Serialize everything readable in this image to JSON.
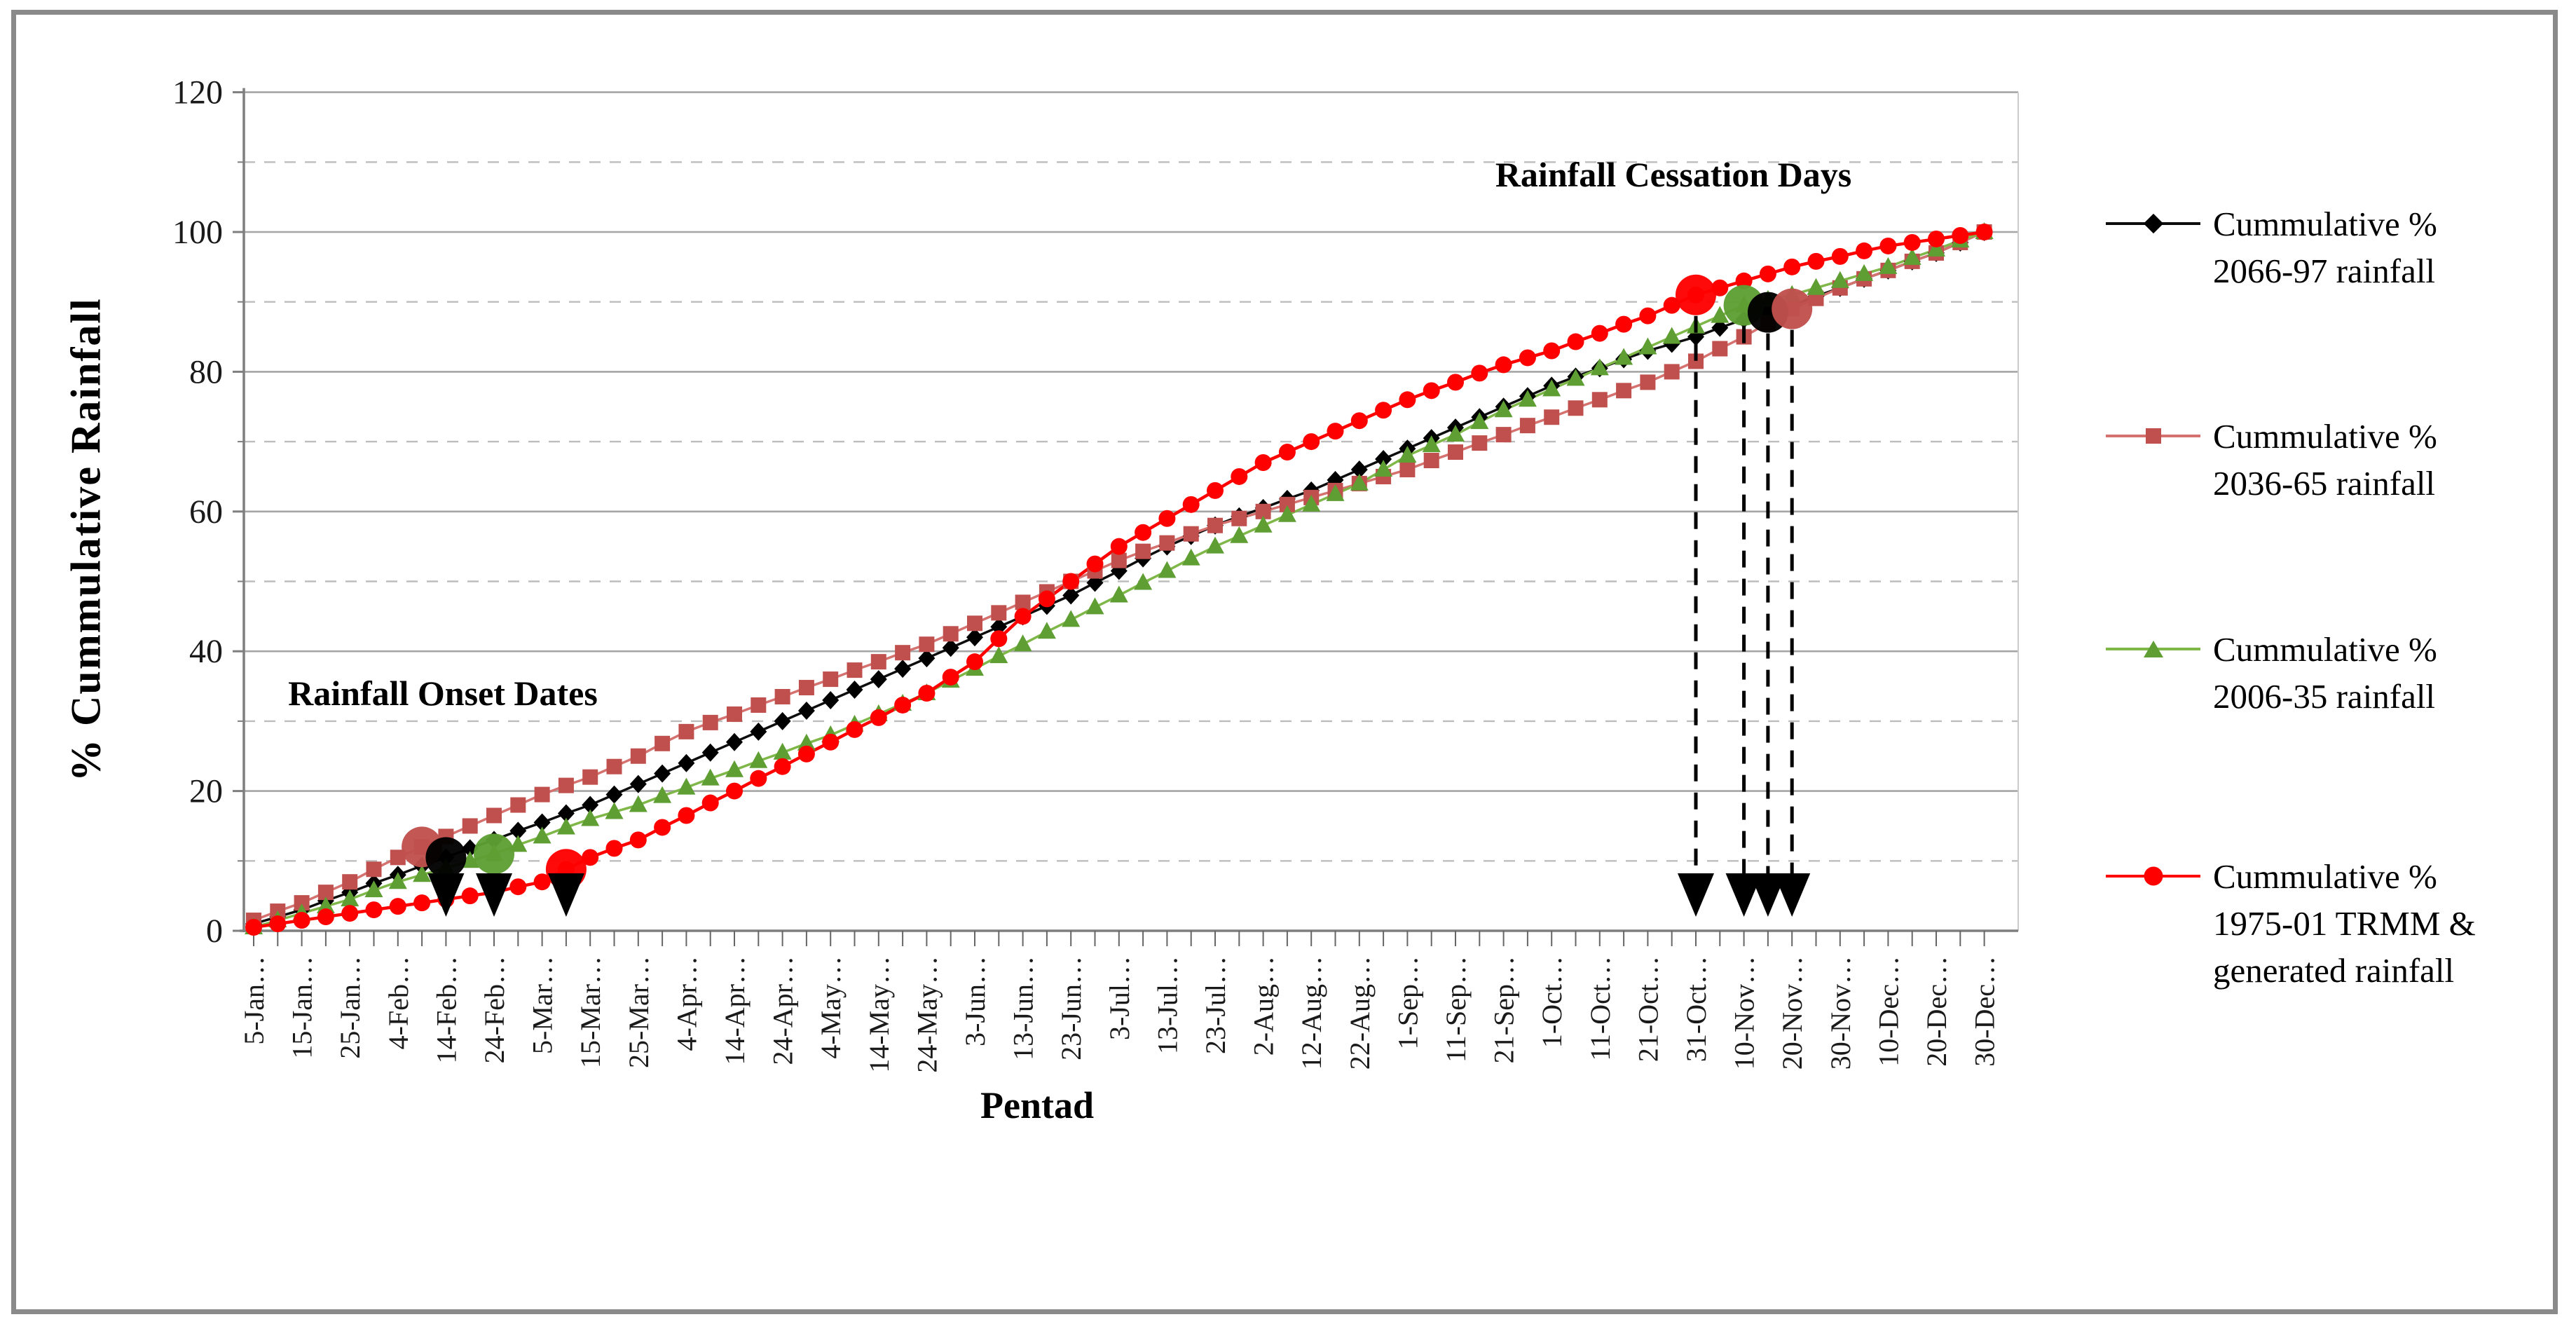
{
  "figure": {
    "background": "#ffffff",
    "border_color": "#8a8a8a"
  },
  "chart_data": {
    "type": "line",
    "title": "",
    "xlabel": "Pentad",
    "ylabel": "% Cummulative Rainfall",
    "ylim": [
      0,
      120
    ],
    "y_major_ticks": [
      0,
      20,
      40,
      60,
      80,
      100,
      120
    ],
    "y_minor_gridlines": [
      10,
      30,
      50,
      70,
      90,
      110
    ],
    "grid": "major horizontal solid, minor horizontal dashed",
    "legend_position": "right",
    "points_per_series": 73,
    "x_note": "73 pentad points per year; tick labels shown at every second point (10-day steps)",
    "x_tick_labels": [
      "5-Jan…",
      "15-Jan…",
      "25-Jan…",
      "4-Feb…",
      "14-Feb…",
      "24-Feb…",
      "5-Mar…",
      "15-Mar…",
      "25-Mar…",
      "4-Apr…",
      "14-Apr…",
      "24-Apr…",
      "4-May…",
      "14-May…",
      "24-May…",
      "3-Jun…",
      "13-Jun…",
      "23-Jun…",
      "3-Jul…",
      "13-Jul…",
      "23-Jul…",
      "2-Aug…",
      "12-Aug…",
      "22-Aug…",
      "1-Sep…",
      "11-Sep…",
      "21-Sep…",
      "1-Oct…",
      "11-Oct…",
      "21-Oct…",
      "31-Oct…",
      "10-Nov…",
      "20-Nov…",
      "30-Nov…",
      "10-Dec…",
      "20-Dec…",
      "30-Dec…"
    ],
    "series": [
      {
        "name": "Cummulative % 2066-97 rainfall",
        "marker": "diamond",
        "marker_color": "#000000",
        "line_color": "#0d0d0d",
        "values": [
          1,
          2,
          3,
          4.3,
          5.5,
          6.8,
          8,
          9.3,
          10.5,
          11.8,
          13,
          14.3,
          15.5,
          16.8,
          18,
          19.5,
          21,
          22.5,
          24,
          25.5,
          27,
          28.5,
          30,
          31.5,
          33,
          34.5,
          36,
          37.5,
          39,
          40.5,
          42,
          43.5,
          45,
          46.5,
          48,
          49.8,
          51.5,
          53.3,
          55,
          56.5,
          58,
          59.3,
          60.5,
          61.8,
          63,
          64.5,
          66,
          67.5,
          69,
          70.5,
          72,
          73.5,
          75,
          76.5,
          78,
          79.3,
          80.5,
          81.8,
          83,
          84,
          85,
          86.3,
          87.5,
          88.5,
          89.5,
          90.8,
          92,
          93.3,
          94.5,
          95.8,
          97,
          98.5,
          100
        ]
      },
      {
        "name": "Cummulative % 2036-65 rainfall",
        "marker": "square",
        "marker_color": "#c0504d",
        "line_color": "#d57270",
        "values": [
          1.5,
          2.8,
          4,
          5.5,
          7,
          8.8,
          10.5,
          12,
          13.5,
          15,
          16.5,
          18,
          19.5,
          20.8,
          22,
          23.5,
          25,
          26.8,
          28.5,
          29.8,
          31,
          32.3,
          33.5,
          34.8,
          36,
          37.3,
          38.5,
          39.8,
          41,
          42.5,
          44,
          45.5,
          47,
          48.5,
          50,
          51.5,
          53,
          54.3,
          55.5,
          56.8,
          58,
          59,
          60,
          61,
          62,
          63,
          64,
          65,
          66,
          67.3,
          68.5,
          69.8,
          71,
          72.3,
          73.5,
          74.8,
          76,
          77.3,
          78.5,
          80,
          81.5,
          83.3,
          85,
          87,
          89,
          90.5,
          92,
          93.3,
          94.5,
          95.8,
          97,
          98.5,
          100
        ]
      },
      {
        "name": "Cummulative % 2006-35 rainfall",
        "marker": "triangle",
        "marker_color": "#5e9e33",
        "line_color": "#7fb848",
        "values": [
          0.5,
          1.5,
          2.5,
          3.5,
          4.5,
          5.8,
          7,
          8,
          9,
          10,
          11,
          12.3,
          13.5,
          14.8,
          16,
          17,
          18,
          19.3,
          20.5,
          21.8,
          23,
          24.3,
          25.5,
          26.8,
          28,
          29.5,
          31,
          32.5,
          34,
          35.8,
          37.5,
          39.3,
          41,
          42.8,
          44.5,
          46.3,
          48,
          49.8,
          51.5,
          53.3,
          55,
          56.5,
          58,
          59.5,
          61,
          62.5,
          64,
          66,
          68,
          69.5,
          71,
          72.8,
          74.5,
          76,
          77.5,
          79,
          80.5,
          82,
          83.5,
          85,
          86.5,
          88,
          89.5,
          90.3,
          91,
          92,
          93,
          94,
          95,
          96.3,
          97.5,
          98.8,
          100
        ]
      },
      {
        "name": "Cummulative % 1975-01 TRMM & generated rainfall",
        "marker": "circle",
        "marker_color": "#ff0000",
        "line_color": "#ff0000",
        "values": [
          0.5,
          1,
          1.5,
          2,
          2.5,
          3,
          3.5,
          4,
          4.5,
          5,
          5.5,
          6.3,
          7,
          8.8,
          10.5,
          11.8,
          13,
          14.8,
          16.5,
          18.3,
          20,
          21.8,
          23.5,
          25.3,
          27,
          28.8,
          30.5,
          32.3,
          34,
          36.3,
          38.5,
          41.8,
          45,
          47.5,
          50,
          52.5,
          55,
          57,
          59,
          61,
          63,
          65,
          67,
          68.5,
          70,
          71.5,
          73,
          74.5,
          76,
          77.3,
          78.5,
          79.8,
          81,
          82,
          83,
          84.3,
          85.5,
          86.8,
          88,
          89.5,
          91,
          92,
          93,
          94,
          95,
          95.8,
          96.5,
          97.3,
          98,
          98.5,
          99,
          99.5,
          100
        ]
      }
    ],
    "annotations": {
      "onset_label": "Rainfall Onset Dates",
      "cessation_label": "Rainfall Cessation Days",
      "onset_markers": [
        {
          "series_index": 1,
          "x_index": 7,
          "value": 12,
          "arrow": false
        },
        {
          "series_index": 0,
          "x_index": 8,
          "value": 10.5,
          "arrow": true
        },
        {
          "series_index": 2,
          "x_index": 10,
          "value": 11,
          "arrow": true
        },
        {
          "series_index": 3,
          "x_index": 13,
          "value": 8.8,
          "arrow": true
        }
      ],
      "cessation_markers": [
        {
          "series_index": 3,
          "x_index": 60,
          "value": 91,
          "arrow": true
        },
        {
          "series_index": 2,
          "x_index": 62,
          "value": 89.5,
          "arrow": true
        },
        {
          "series_index": 0,
          "x_index": 63,
          "value": 88.5,
          "arrow": true
        },
        {
          "series_index": 1,
          "x_index": 64,
          "value": 89,
          "arrow": true
        }
      ]
    }
  },
  "legend": {
    "entries": [
      {
        "lines": [
          "Cummulative %",
          "2066-97 rainfall"
        ]
      },
      {
        "lines": [
          "Cummulative %",
          "2036-65 rainfall"
        ]
      },
      {
        "lines": [
          "Cummulative %",
          "2006-35 rainfall"
        ]
      },
      {
        "lines": [
          "Cummulative %",
          "1975-01 TRMM &",
          "generated rainfall"
        ]
      }
    ]
  }
}
